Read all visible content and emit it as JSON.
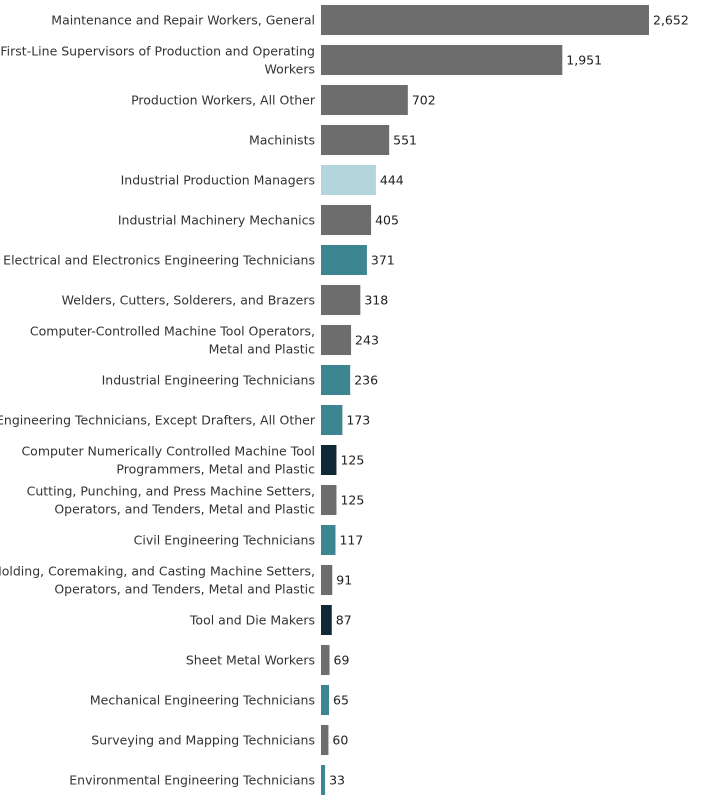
{
  "chart_data": {
    "type": "bar",
    "orientation": "horizontal",
    "title": "",
    "xlabel": "",
    "ylabel": "",
    "grid": false,
    "legend": "none",
    "xlim": [
      0,
      2652
    ],
    "colors": {
      "gray": "#6d6d6d",
      "light_blue": "#b5d5dc",
      "teal": "#3d8590",
      "dark_navy": "#0f2a36"
    },
    "categories": [
      [
        "Maintenance and Repair Workers, General"
      ],
      [
        "First-Line Supervisors of Production and Operating",
        "Workers"
      ],
      [
        "Production Workers, All Other"
      ],
      [
        "Machinists"
      ],
      [
        "Industrial Production Managers"
      ],
      [
        "Industrial Machinery Mechanics"
      ],
      [
        "Electrical and Electronics Engineering Technicians"
      ],
      [
        "Welders, Cutters, Solderers, and Brazers"
      ],
      [
        "Computer-Controlled Machine Tool Operators,",
        "Metal and Plastic"
      ],
      [
        "Industrial Engineering Technicians"
      ],
      [
        "Engineering Technicians, Except Drafters, All Other"
      ],
      [
        "Computer Numerically Controlled Machine Tool",
        "Programmers, Metal and Plastic"
      ],
      [
        "Cutting, Punching, and Press Machine Setters,",
        "Operators, and Tenders, Metal and Plastic"
      ],
      [
        "Civil Engineering Technicians"
      ],
      [
        "Molding, Coremaking, and Casting Machine Setters,",
        "Operators, and Tenders, Metal and Plastic"
      ],
      [
        "Tool and Die Makers"
      ],
      [
        "Sheet Metal Workers"
      ],
      [
        "Mechanical Engineering Technicians"
      ],
      [
        "Surveying and Mapping Technicians"
      ],
      [
        "Environmental Engineering Technicians"
      ]
    ],
    "values": [
      2652,
      1951,
      702,
      551,
      444,
      405,
      371,
      318,
      243,
      236,
      173,
      125,
      125,
      117,
      91,
      87,
      69,
      65,
      60,
      33
    ],
    "value_labels": [
      "2,652",
      "1,951",
      "702",
      "551",
      "444",
      "405",
      "371",
      "318",
      "243",
      "236",
      "173",
      "125",
      "125",
      "117",
      "91",
      "87",
      "69",
      "65",
      "60",
      "33"
    ],
    "bar_colors": [
      "gray",
      "gray",
      "gray",
      "gray",
      "light_blue",
      "gray",
      "teal",
      "gray",
      "gray",
      "teal",
      "teal",
      "dark_navy",
      "gray",
      "teal",
      "gray",
      "dark_navy",
      "gray",
      "teal",
      "gray",
      "teal"
    ]
  }
}
